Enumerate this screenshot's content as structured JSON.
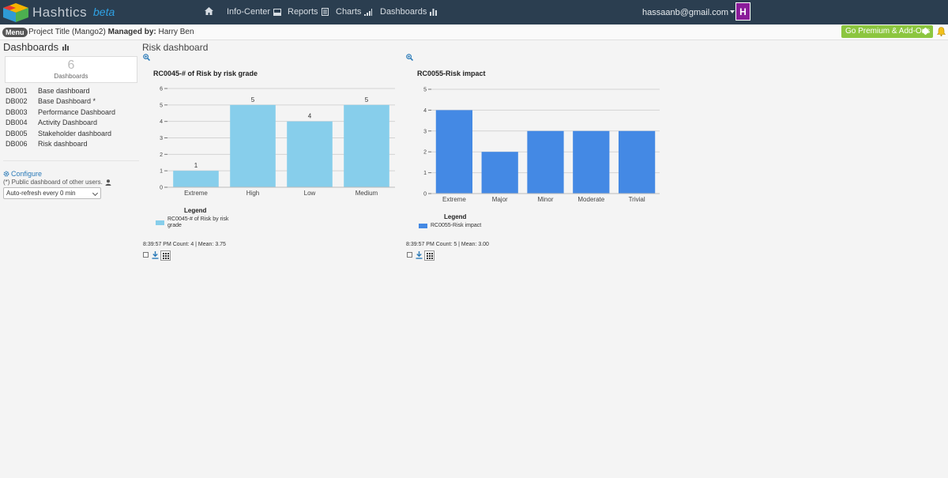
{
  "app": {
    "brand": "Hashtics",
    "beta": "beta"
  },
  "nav": [
    {
      "label": "",
      "icon": "home-icon"
    },
    {
      "label": "Info-Center",
      "icon": "inbox-icon"
    },
    {
      "label": "Reports",
      "icon": "report-icon"
    },
    {
      "label": "Charts",
      "icon": "signal-icon"
    },
    {
      "label": "Dashboards",
      "icon": "bar-chart-icon"
    }
  ],
  "user": {
    "email": "hassaanb@gmail.com",
    "avatar_letter": "H",
    "avatar_color": "#8a1c9a"
  },
  "subbar": {
    "menu_label": "Menu",
    "project_prefix": "Project Title (Mango2)",
    "managed_by_label": "Managed by:",
    "manager": "Harry Ben",
    "premium_label": "Go Premium & Add-Ons",
    "premium_color": "#8cc63f"
  },
  "sidebar": {
    "title": "Dashboards",
    "count": "6",
    "count_label": "Dashboards",
    "items": [
      {
        "code": "DB001",
        "name": "Base dashboard"
      },
      {
        "code": "DB002",
        "name": "Base Dashboard *"
      },
      {
        "code": "DB003",
        "name": "Performance Dashboard"
      },
      {
        "code": "DB004",
        "name": "Activity Dashboard"
      },
      {
        "code": "DB005",
        "name": "Stakeholder dashboard"
      },
      {
        "code": "DB006",
        "name": "Risk dashboard"
      }
    ],
    "configure_label": "Configure",
    "public_note": "(*) Public dashboard of other users.",
    "refresh_value": "Auto-refresh every 0 min"
  },
  "main": {
    "title": "Risk dashboard",
    "charts": [
      {
        "title": "RC0045-# of Risk by risk grade",
        "legend_title": "Legend",
        "legend_label": "RC0045-# of Risk by risk grade",
        "stats": "8:39:57 PM Count: 4 | Mean: 3.75"
      },
      {
        "title": "RC0055-Risk impact",
        "legend_title": "Legend",
        "legend_label": "RC0055-Risk impact",
        "stats": "8:39:57 PM Count: 5 | Mean: 3.00"
      }
    ]
  },
  "chart_data": [
    {
      "type": "bar",
      "title": "RC0045-# of Risk by risk grade",
      "categories": [
        "Extreme",
        "High",
        "Low",
        "Medium"
      ],
      "series": [
        {
          "name": "RC0045-# of Risk by risk grade",
          "values": [
            1,
            5,
            4,
            5
          ]
        }
      ],
      "ylim": [
        0,
        6
      ],
      "yticks": [
        0,
        1,
        2,
        3,
        4,
        5,
        6
      ],
      "data_labels": true,
      "color": "#87ceeb",
      "grid": true,
      "legend_position": "bottom-left"
    },
    {
      "type": "bar",
      "title": "RC0055-Risk impact",
      "categories": [
        "Extreme",
        "Major",
        "Minor",
        "Moderate",
        "Trivial"
      ],
      "series": [
        {
          "name": "RC0055-Risk impact",
          "values": [
            4,
            2,
            3,
            3,
            3
          ]
        }
      ],
      "ylim": [
        0,
        5
      ],
      "yticks": [
        0,
        1,
        2,
        3,
        4,
        5
      ],
      "data_labels": false,
      "color": "#4489e4",
      "grid": true,
      "legend_position": "bottom-left"
    }
  ]
}
